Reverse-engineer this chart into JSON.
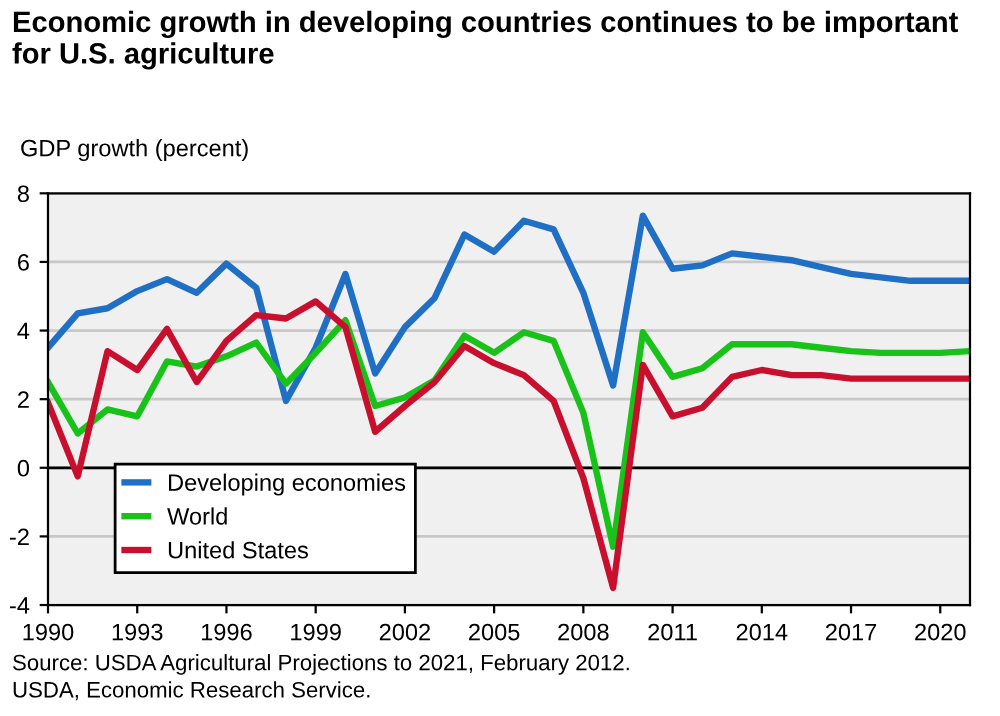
{
  "chart_data": {
    "type": "line",
    "title": "Economic growth in developing countries continues to be important for U.S. agriculture",
    "ylabel": "GDP growth (percent)",
    "x": [
      1990,
      1991,
      1992,
      1993,
      1994,
      1995,
      1996,
      1997,
      1998,
      1999,
      2000,
      2001,
      2002,
      2003,
      2004,
      2005,
      2006,
      2007,
      2008,
      2009,
      2010,
      2011,
      2012,
      2013,
      2014,
      2015,
      2016,
      2017,
      2018,
      2019,
      2020,
      2021
    ],
    "series": [
      {
        "name": "Developing economies",
        "color": "#1f6fc5",
        "values": [
          3.5,
          4.5,
          4.65,
          5.15,
          5.5,
          5.1,
          5.95,
          5.25,
          1.95,
          3.5,
          5.65,
          2.75,
          4.1,
          4.95,
          6.8,
          6.3,
          7.2,
          6.95,
          5.1,
          2.4,
          7.35,
          5.8,
          5.9,
          6.25,
          6.15,
          6.05,
          5.85,
          5.65,
          5.55,
          5.45,
          5.45,
          5.45
        ]
      },
      {
        "name": "World",
        "color": "#19c219",
        "values": [
          2.5,
          1.0,
          1.7,
          1.5,
          3.1,
          2.95,
          3.25,
          3.65,
          2.45,
          3.35,
          4.3,
          1.8,
          2.05,
          2.55,
          3.85,
          3.35,
          3.95,
          3.7,
          1.6,
          -2.3,
          3.95,
          2.65,
          2.9,
          3.6,
          3.6,
          3.6,
          3.5,
          3.4,
          3.35,
          3.35,
          3.35,
          3.4
        ]
      },
      {
        "name": "United States",
        "color": "#c8102e",
        "values": [
          1.9,
          -0.25,
          3.4,
          2.85,
          4.05,
          2.5,
          3.7,
          4.45,
          4.35,
          4.85,
          4.1,
          1.05,
          1.8,
          2.5,
          3.55,
          3.05,
          2.7,
          1.95,
          -0.3,
          -3.5,
          3.0,
          1.5,
          1.75,
          2.65,
          2.85,
          2.7,
          2.7,
          2.6,
          2.6,
          2.6,
          2.6,
          2.6
        ]
      }
    ],
    "xlim": [
      1990,
      2021
    ],
    "xticks": [
      1990,
      1993,
      1996,
      1999,
      2002,
      2005,
      2008,
      2011,
      2014,
      2017,
      2020
    ],
    "ylim": [
      -4,
      8
    ],
    "yticks": [
      -4,
      -2,
      0,
      2,
      4,
      6,
      8
    ],
    "ref_lines": [
      {
        "axis": "y",
        "value": 0,
        "color": "#000000"
      }
    ],
    "grid": "y",
    "legend": "bottom left",
    "marker": "none",
    "line_style": "solid",
    "annotations": [
      "Source: USDA Agricultural Projections to 2021, February 2012.",
      "USDA, Economic Research Service."
    ]
  }
}
